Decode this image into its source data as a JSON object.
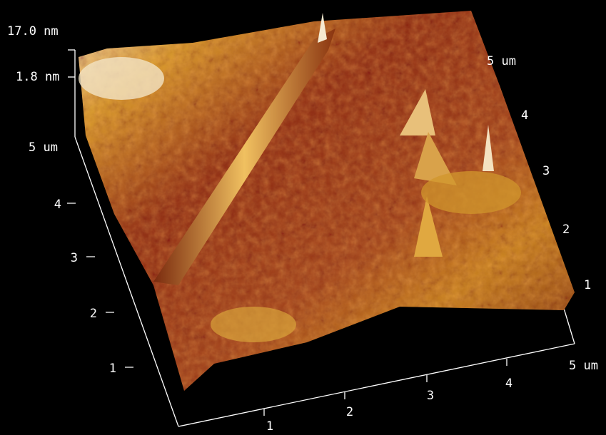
{
  "z_axis": {
    "max_label": "17.0 nm",
    "mid_label": "1.8 nm"
  },
  "left_axis": {
    "labels": [
      "1",
      "2",
      "3",
      "4",
      "5 um"
    ]
  },
  "bottom_axis": {
    "labels": [
      "1",
      "2",
      "3",
      "4",
      "5 um"
    ]
  },
  "right_axis": {
    "labels": [
      "1",
      "2",
      "3",
      "4",
      "5 um"
    ]
  }
}
